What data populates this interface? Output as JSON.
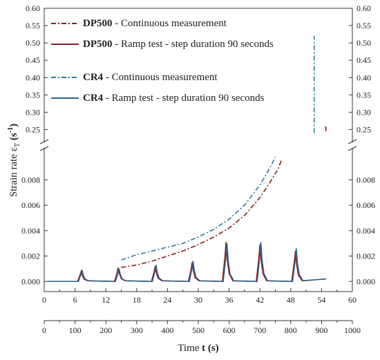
{
  "chart_data": {
    "type": "line",
    "title": "",
    "ylabel": {
      "prefix": "Strain rate ε",
      "sub": "T",
      "space": " ",
      "unit_open": "(s",
      "unit_sup": "-1",
      "unit_close": ")"
    },
    "xlabel_bottom": {
      "prefix": "Time ",
      "bold": "t (s)"
    },
    "x_bottom_range": [
      0,
      1000
    ],
    "x_bottom_ticks": [
      0,
      100,
      200,
      300,
      400,
      500,
      600,
      700,
      800,
      900,
      1000
    ],
    "x_mid_range": [
      0,
      60
    ],
    "x_mid_ticks": [
      0,
      6,
      12,
      18,
      24,
      30,
      36,
      42,
      48,
      54,
      60
    ],
    "y_upper_range": [
      0.225,
      0.6
    ],
    "y_upper_ticks": [
      "0.25",
      "0.30",
      "0.35",
      "0.40",
      "0.45",
      "0.50",
      "0.55",
      "0.60"
    ],
    "y_lower_range": [
      -0.0008,
      0.0103
    ],
    "y_lower_ticks": [
      "0.000",
      "0.002",
      "0.004",
      "0.006",
      "0.008"
    ],
    "legend": [
      {
        "bold": "DP500",
        "text": " - Continuous measurement",
        "color": "#8b1a1a",
        "dash": "dashdot"
      },
      {
        "bold": "DP500",
        "text": " - Ramp test - step duration 90 seconds",
        "color": "#8b1a1a",
        "dash": "solid"
      },
      {
        "bold": "CR4",
        "text": " - Continuous measurement",
        "color": "#2a7a9c",
        "dash": "dashdot"
      },
      {
        "bold": "CR4",
        "text": " - Ramp test - step duration 90 seconds",
        "color": "#2a5f8c",
        "dash": "solid"
      }
    ],
    "series": [
      {
        "name": "DP500 - Continuous measurement",
        "axis": "lower",
        "x": [
          250,
          300,
          350,
          400,
          450,
          500,
          550,
          600,
          650,
          700,
          730,
          760,
          770
        ],
        "y": [
          0.0011,
          0.0013,
          0.0016,
          0.002,
          0.0024,
          0.0029,
          0.0035,
          0.0042,
          0.0052,
          0.0066,
          0.0077,
          0.0089,
          0.0096
        ]
      },
      {
        "name": "CR4 - Continuous measurement",
        "axis": "lower",
        "x": [
          250,
          300,
          350,
          400,
          450,
          500,
          550,
          600,
          650,
          700,
          720,
          740,
          750
        ],
        "y": [
          0.0017,
          0.0021,
          0.0024,
          0.0027,
          0.003,
          0.0035,
          0.0041,
          0.0049,
          0.006,
          0.0076,
          0.0084,
          0.0093,
          0.0098
        ]
      },
      {
        "name": "CR4 - Continuous measurement (upper)",
        "axis": "upper",
        "x": [
          876,
          876
        ],
        "y": [
          0.24,
          0.52
        ]
      },
      {
        "name": "DP500 - Continuous measurement (upper)",
        "axis": "upper",
        "x": [
          914,
          914
        ],
        "y": [
          0.245,
          0.265
        ]
      },
      {
        "name": "DP500 - Ramp test - step duration 90 seconds",
        "axis": "lower",
        "base": 0.0,
        "tail_end": 915,
        "peaks": [
          {
            "x": 120,
            "y": 0.0008
          },
          {
            "x": 240,
            "y": 0.0011
          },
          {
            "x": 360,
            "y": 0.0012
          },
          {
            "x": 480,
            "y": 0.0015
          },
          {
            "x": 590,
            "y": 0.0031
          },
          {
            "x": 700,
            "y": 0.0029
          },
          {
            "x": 815,
            "y": 0.0024
          }
        ]
      },
      {
        "name": "CR4 - Ramp test - step duration 90 seconds",
        "axis": "lower",
        "base": 0.0,
        "tail_end": 915,
        "peaks": [
          {
            "x": 123,
            "y": 0.0009
          },
          {
            "x": 243,
            "y": 0.001
          },
          {
            "x": 363,
            "y": 0.0013
          },
          {
            "x": 483,
            "y": 0.0016
          },
          {
            "x": 593,
            "y": 0.003
          },
          {
            "x": 703,
            "y": 0.0031
          },
          {
            "x": 818,
            "y": 0.0026
          }
        ]
      }
    ]
  }
}
